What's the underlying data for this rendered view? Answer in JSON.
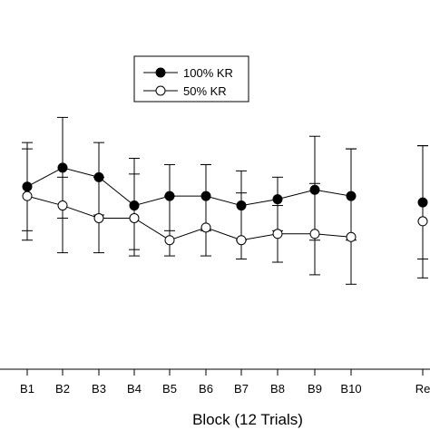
{
  "chart_data": {
    "type": "line",
    "title": "",
    "xlabel": "Block (12 Trials)",
    "ylabel": "",
    "categories": [
      "B1",
      "B2",
      "B3",
      "B4",
      "B5",
      "B6",
      "B7",
      "B8",
      "B9",
      "B10",
      "Re"
    ],
    "ylim": [
      0,
      100
    ],
    "grid": false,
    "legend_position": "top-center",
    "series": [
      {
        "name": "100% KR",
        "marker": "filled-circle",
        "color": "#000000",
        "values": [
          58,
          64,
          61,
          52,
          55,
          55,
          52,
          54,
          57,
          55,
          53
        ],
        "error_upper": [
          72,
          80,
          72,
          67,
          65,
          65,
          63,
          61,
          74,
          70,
          71
        ],
        "error_lower": [
          44,
          48,
          49,
          38,
          44,
          44,
          41,
          44,
          41,
          41,
          35
        ]
      },
      {
        "name": "50% KR",
        "marker": "open-circle",
        "color": "#000000",
        "values": [
          55,
          52,
          48,
          48,
          41,
          45,
          41,
          43,
          43,
          42,
          47
        ],
        "error_upper": [
          70,
          61,
          61,
          62,
          55,
          65,
          56,
          52,
          59,
          70,
          71
        ],
        "error_lower": [
          41,
          37,
          37,
          36,
          36,
          36,
          35,
          34,
          30,
          27,
          29
        ]
      }
    ]
  }
}
